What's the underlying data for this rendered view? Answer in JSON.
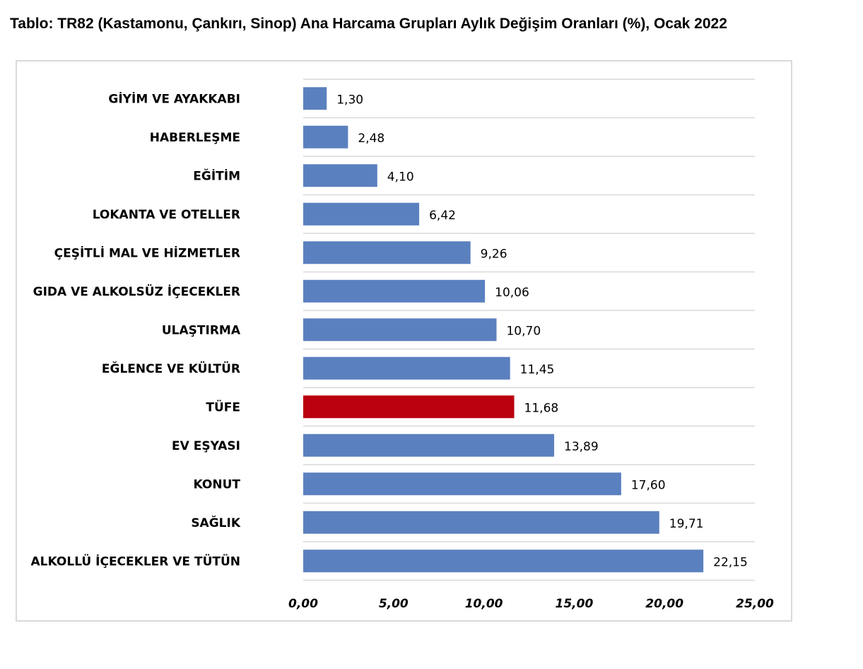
{
  "page": {
    "title": "Tablo: TR82 (Kastamonu, Çankırı, Sinop) Ana Harcama Grupları Aylık Değişim Oranları (%), Ocak 2022"
  },
  "colors": {
    "bar": "#5b80bf",
    "highlight": "#bb0010",
    "grid": "#d9d9d9"
  },
  "chart_data": {
    "type": "bar",
    "orientation": "horizontal",
    "title": "",
    "xlabel": "",
    "ylabel": "",
    "xlim": [
      0,
      25
    ],
    "ticks": [
      "0,00",
      "5,00",
      "10,00",
      "15,00",
      "20,00",
      "25,00"
    ],
    "tick_values": [
      0,
      5,
      10,
      15,
      20,
      25
    ],
    "grid": true,
    "legend": "none",
    "highlight_category": "TÜFE",
    "categories": [
      "GİYİM VE AYAKKABI",
      "HABERLEŞME",
      "EĞİTİM",
      "LOKANTA VE OTELLER",
      "ÇEŞİTLİ MAL VE HİZMETLER",
      "GIDA VE ALKOLSÜZ İÇECEKLER",
      "ULAŞTIRMA",
      "EĞLENCE VE KÜLTÜR",
      "TÜFE",
      "EV EŞYASI",
      "KONUT",
      "SAĞLIK",
      "ALKOLLÜ İÇECEKLER VE TÜTÜN"
    ],
    "values": [
      1.3,
      2.48,
      4.1,
      6.42,
      9.26,
      10.06,
      10.7,
      11.45,
      11.68,
      13.89,
      17.6,
      19.71,
      22.15
    ],
    "value_labels": [
      "1,30",
      "2,48",
      "4,10",
      "6,42",
      "9,26",
      "10,06",
      "10,70",
      "11,45",
      "11,68",
      "13,89",
      "17,60",
      "19,71",
      "22,15"
    ]
  }
}
